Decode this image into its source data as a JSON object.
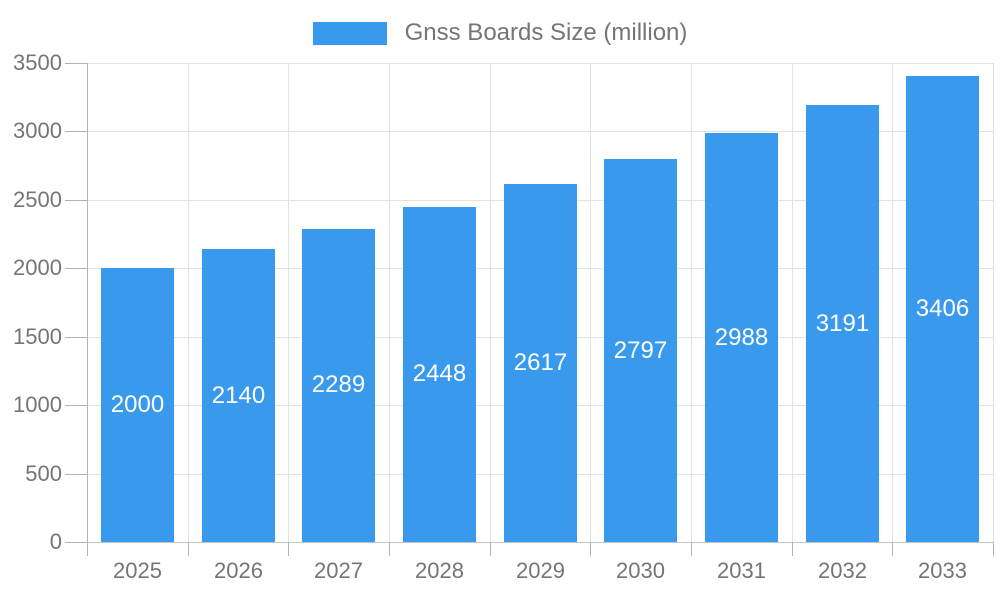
{
  "chart_data": {
    "type": "bar",
    "series_name": "Gnss Boards Size (million)",
    "categories": [
      "2025",
      "2026",
      "2027",
      "2028",
      "2029",
      "2030",
      "2031",
      "2032",
      "2033"
    ],
    "values": [
      2000,
      2140,
      2289,
      2448,
      2617,
      2797,
      2988,
      3191,
      3406
    ],
    "yticks": [
      0,
      500,
      1000,
      1500,
      2000,
      2500,
      3000,
      3500
    ],
    "ylim": [
      0,
      3500
    ],
    "grid": true,
    "legend_position": "top",
    "bar_color": "#3999ec",
    "label_color": "#757575",
    "value_label_color": "#ffffff",
    "gridline_color": "#e2e2e2",
    "axis_color": "#b3b3b3",
    "zero_line_color": "#c4c4c4"
  }
}
